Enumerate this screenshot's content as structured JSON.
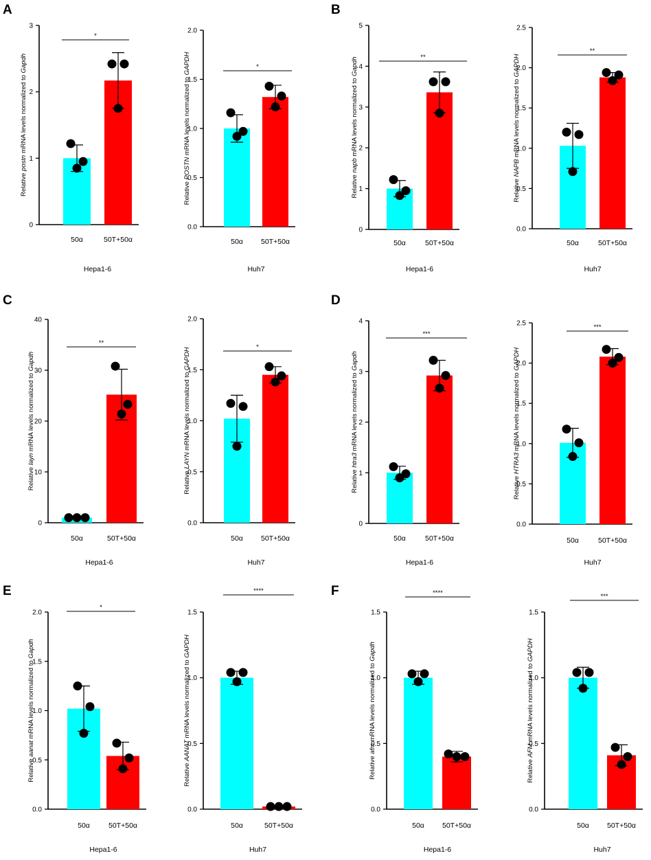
{
  "colors": {
    "bar_control": "#00ffff",
    "bar_treated": "#ff0000",
    "dot": "#000000"
  },
  "panel_labels": [
    "A",
    "B",
    "C",
    "D",
    "E",
    "F"
  ],
  "chart_data": [
    {
      "type": "bar",
      "panel": "A",
      "cell_line": "Hepa1-6",
      "ylabel_pre": "Relative ",
      "gene": "postn",
      "ylabel_mid": " mRNA levels normalized to ",
      "ref": "Gapdh",
      "categories": [
        "50α",
        "50T+50α"
      ],
      "values": [
        1.0,
        2.17
      ],
      "errors": [
        0.2,
        0.42
      ],
      "points": [
        [
          1.22,
          0.95,
          0.85
        ],
        [
          2.42,
          2.42,
          1.75
        ]
      ],
      "ylim": [
        0,
        3
      ],
      "yticks": [
        "0",
        "1",
        "2",
        "3"
      ],
      "significance": "*"
    },
    {
      "type": "bar",
      "panel": "A",
      "cell_line": "Huh7",
      "ylabel_pre": "Relative ",
      "gene": "POSTN",
      "ylabel_mid": " mRNA levels  normalized to ",
      "ref": "GAPDH",
      "categories": [
        "50α",
        "50T+50α"
      ],
      "values": [
        1.0,
        1.32
      ],
      "errors": [
        0.14,
        0.12
      ],
      "points": [
        [
          1.16,
          0.97,
          0.92
        ],
        [
          1.43,
          1.33,
          1.22
        ]
      ],
      "ylim": [
        0,
        2
      ],
      "yticks": [
        "0.0",
        "0.5",
        "1.0",
        "1.5",
        "2.0"
      ],
      "significance": "*"
    },
    {
      "type": "bar",
      "panel": "B",
      "cell_line": "Hepa1-6",
      "ylabel_pre": "Relative ",
      "gene": "napb",
      "ylabel_mid": " mRNA levels normalized to ",
      "ref": "Gapdh",
      "categories": [
        "50α",
        "50T+50α"
      ],
      "values": [
        1.0,
        3.36
      ],
      "errors": [
        0.2,
        0.5
      ],
      "points": [
        [
          1.22,
          0.95,
          0.83
        ],
        [
          3.62,
          3.62,
          2.85
        ]
      ],
      "ylim": [
        0,
        5
      ],
      "yticks": [
        "0",
        "1",
        "2",
        "3",
        "4",
        "5"
      ],
      "significance": "**"
    },
    {
      "type": "bar",
      "panel": "B",
      "cell_line": "Huh7",
      "ylabel_pre": "Relative ",
      "gene": "NAPB",
      "ylabel_mid": " mRNA levels normalized to ",
      "ref": "GAPDH",
      "categories": [
        "50α",
        "50T+50α"
      ],
      "values": [
        1.03,
        1.88
      ],
      "errors": [
        0.28,
        0.06
      ],
      "points": [
        [
          1.2,
          1.17,
          0.71
        ],
        [
          1.94,
          1.91,
          1.84
        ]
      ],
      "ylim": [
        0,
        2.5
      ],
      "yticks": [
        "0.0",
        "0.5",
        "1.0",
        "1.5",
        "2.0",
        "2.5"
      ],
      "significance": "**"
    },
    {
      "type": "bar",
      "panel": "C",
      "cell_line": "Hepa1-6",
      "ylabel_pre": "Relative ",
      "gene": "layn",
      "ylabel_mid": " mRNA levels normalized to ",
      "ref": "Gapdh",
      "categories": [
        "50α",
        "50T+50α"
      ],
      "values": [
        1.0,
        25.2
      ],
      "errors": [
        0.1,
        5.0
      ],
      "points": [
        [
          1.0,
          1.0,
          1.0
        ],
        [
          30.8,
          23.3,
          21.4
        ]
      ],
      "ylim": [
        0,
        40
      ],
      "yticks": [
        "0",
        "10",
        "20",
        "30",
        "40"
      ],
      "significance": "**"
    },
    {
      "type": "bar",
      "panel": "C",
      "cell_line": "Huh7",
      "ylabel_pre": "Relative ",
      "gene": "LAYN",
      "ylabel_mid": " mRNA levels normalized to ",
      "ref": "GAPDH",
      "categories": [
        "50α",
        "50T+50α"
      ],
      "values": [
        1.02,
        1.45
      ],
      "errors": [
        0.23,
        0.08
      ],
      "points": [
        [
          1.17,
          1.14,
          0.75
        ],
        [
          1.53,
          1.44,
          1.38
        ]
      ],
      "ylim": [
        0,
        2
      ],
      "yticks": [
        "0.0",
        "0.5",
        "1.0",
        "1.5",
        "2.0"
      ],
      "significance": "*"
    },
    {
      "type": "bar",
      "panel": "D",
      "cell_line": "Hepa1-6",
      "ylabel_pre": "Relative ",
      "gene": "htra3",
      "ylabel_mid": " mRNA levels normalized to ",
      "ref": "Gapdh",
      "categories": [
        "50α",
        "50T+50α"
      ],
      "values": [
        1.0,
        2.92
      ],
      "errors": [
        0.13,
        0.3
      ],
      "points": [
        [
          1.12,
          0.98,
          0.9
        ],
        [
          3.22,
          2.92,
          2.67
        ]
      ],
      "ylim": [
        0,
        4
      ],
      "yticks": [
        "0",
        "1",
        "2",
        "3",
        "4"
      ],
      "significance": "***"
    },
    {
      "type": "bar",
      "panel": "D",
      "cell_line": "Huh7",
      "ylabel_pre": "Relative ",
      "gene": "HTRA3",
      "ylabel_mid": " mRNA levels normalized to ",
      "ref": "GAPDH",
      "categories": [
        "50α",
        "50T+50α"
      ],
      "values": [
        1.01,
        2.08
      ],
      "errors": [
        0.18,
        0.1
      ],
      "points": [
        [
          1.18,
          1.01,
          0.84
        ],
        [
          2.17,
          2.07,
          2.0
        ]
      ],
      "ylim": [
        0,
        2.5
      ],
      "yticks": [
        "0.0",
        "0.5",
        "1.0",
        "1.5",
        "2.0",
        "2.5"
      ],
      "significance": "***"
    },
    {
      "type": "bar",
      "panel": "E",
      "cell_line": "Hepa1-6",
      "ylabel_pre": "Relative ",
      "gene": "aanat",
      "ylabel_mid": " mRNA levels normalized to ",
      "ref": "Gapdh",
      "categories": [
        "50α",
        "50T+50α"
      ],
      "values": [
        1.02,
        0.54
      ],
      "errors": [
        0.23,
        0.14
      ],
      "points": [
        [
          1.25,
          1.04,
          0.77
        ],
        [
          0.67,
          0.52,
          0.41
        ]
      ],
      "ylim": [
        0,
        2
      ],
      "yticks": [
        "0.0",
        "0.5",
        "1.0",
        "1.5",
        "2.0"
      ],
      "significance": "*"
    },
    {
      "type": "bar",
      "panel": "E",
      "cell_line": "Huh7",
      "ylabel_pre": "Relative ",
      "gene": "AANAT",
      "ylabel_mid": " mRNA levels normalized to ",
      "ref": "GAPDH",
      "categories": [
        "50α",
        "50T+50α"
      ],
      "values": [
        1.0,
        0.02
      ],
      "errors": [
        0.05,
        0.005
      ],
      "points": [
        [
          1.04,
          1.04,
          0.97
        ],
        [
          0.02,
          0.02,
          0.02
        ]
      ],
      "ylim": [
        0,
        1.5
      ],
      "yticks": [
        "0.0",
        "0.5",
        "1.0",
        "1.5"
      ],
      "significance": "****"
    },
    {
      "type": "bar",
      "panel": "F",
      "cell_line": "Hepa1-6",
      "ylabel_pre": "Relative ",
      "gene": "afm",
      "ylabel_mid": " mRNA levels normalized to ",
      "ref": "Gapdh",
      "categories": [
        "50α",
        "50T+50α"
      ],
      "values": [
        1.0,
        0.4
      ],
      "errors": [
        0.05,
        0.04
      ],
      "points": [
        [
          1.03,
          1.03,
          0.97
        ],
        [
          0.42,
          0.4,
          0.4
        ]
      ],
      "ylim": [
        0,
        1.5
      ],
      "yticks": [
        "0.0",
        "0.5",
        "1.0",
        "1.5"
      ],
      "significance": "****"
    },
    {
      "type": "bar",
      "panel": "F",
      "cell_line": "Huh7",
      "ylabel_pre": "Relative ",
      "gene": "AFM",
      "ylabel_mid": " mRNA levels normalized to ",
      "ref": "GAPDH",
      "categories": [
        "50α",
        "50T+50α"
      ],
      "values": [
        1.0,
        0.41
      ],
      "errors": [
        0.08,
        0.08
      ],
      "points": [
        [
          1.04,
          1.04,
          0.92
        ],
        [
          0.47,
          0.4,
          0.34
        ]
      ],
      "ylim": [
        0,
        1.5
      ],
      "yticks": [
        "0.0",
        "0.5",
        "1.0",
        "1.5"
      ],
      "significance": "***"
    }
  ]
}
